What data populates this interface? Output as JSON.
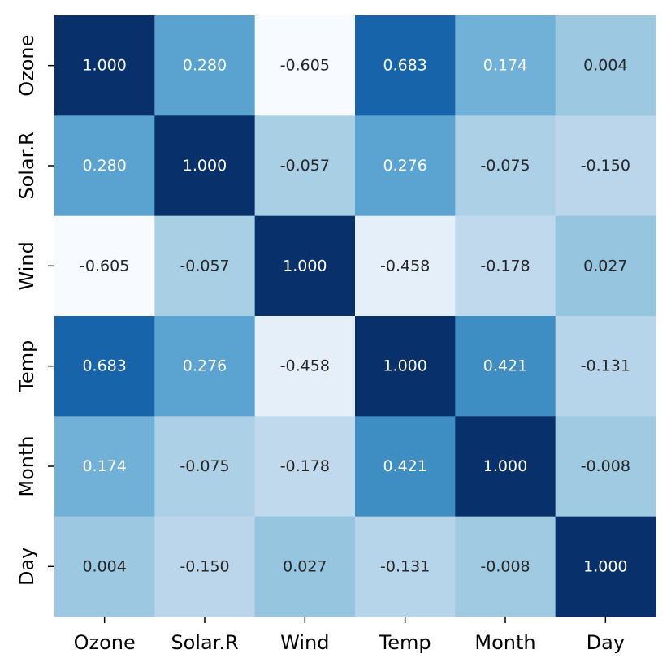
{
  "chart_data": {
    "type": "heatmap",
    "title": "",
    "xlabel": "",
    "ylabel": "",
    "colormap": "Blues",
    "vmin": -0.605,
    "vmax": 1.0,
    "colorbar": false,
    "grid": false,
    "x_categories": [
      "Ozone",
      "Solar.R",
      "Wind",
      "Temp",
      "Month",
      "Day"
    ],
    "y_categories": [
      "Ozone",
      "Solar.R",
      "Wind",
      "Temp",
      "Month",
      "Day"
    ],
    "matrix": [
      [
        1.0,
        0.28,
        -0.605,
        0.683,
        0.174,
        0.004
      ],
      [
        0.28,
        1.0,
        -0.057,
        0.276,
        -0.075,
        -0.15
      ],
      [
        -0.605,
        -0.057,
        1.0,
        -0.458,
        -0.178,
        0.027
      ],
      [
        0.683,
        0.276,
        -0.458,
        1.0,
        0.421,
        -0.131
      ],
      [
        0.174,
        -0.075,
        -0.178,
        0.421,
        1.0,
        -0.008
      ],
      [
        0.004,
        -0.15,
        0.027,
        -0.131,
        -0.008,
        1.0
      ]
    ],
    "annotations": [
      [
        "1.000",
        "0.280",
        "-0.605",
        "0.683",
        "0.174",
        "0.004"
      ],
      [
        "0.280",
        "1.000",
        "-0.057",
        "0.276",
        "-0.075",
        "-0.150"
      ],
      [
        "-0.605",
        "-0.057",
        "1.000",
        "-0.458",
        "-0.178",
        "0.027"
      ],
      [
        "0.683",
        "0.276",
        "-0.458",
        "1.000",
        "0.421",
        "-0.131"
      ],
      [
        "0.174",
        "-0.075",
        "-0.178",
        "0.421",
        "1.000",
        "-0.008"
      ],
      [
        "0.004",
        "-0.150",
        "0.027",
        "-0.131",
        "-0.008",
        "1.000"
      ]
    ],
    "annotation_colors": {
      "light_text": "#ffffff",
      "dark_text": "#262626"
    }
  }
}
